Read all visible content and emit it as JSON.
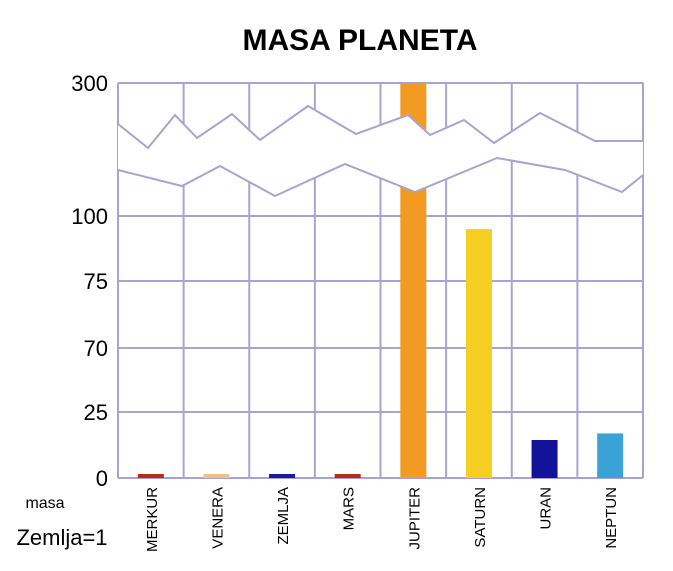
{
  "chart_data": {
    "type": "bar",
    "title": "MASA PLANETA",
    "ylabel_line1": "masa",
    "ylabel_line2": "Zemlja=1",
    "y_tick_labels": [
      "0",
      "25",
      "70",
      "75",
      "100",
      "300"
    ],
    "axis_break": true,
    "grid": true,
    "categories": [
      "MERKUR",
      "VENERA",
      "ZEMLJA",
      "MARS",
      "JUPITER",
      "SATURN",
      "URAN",
      "NEPTUN"
    ],
    "values": [
      0.06,
      0.82,
      1,
      0.11,
      318,
      95,
      14.5,
      17
    ],
    "colors": [
      "#b52b1d",
      "#e9c48c",
      "#1a1aa0",
      "#b52b1d",
      "#f39a22",
      "#f4cf22",
      "#13139a",
      "#3aa2d6"
    ]
  }
}
